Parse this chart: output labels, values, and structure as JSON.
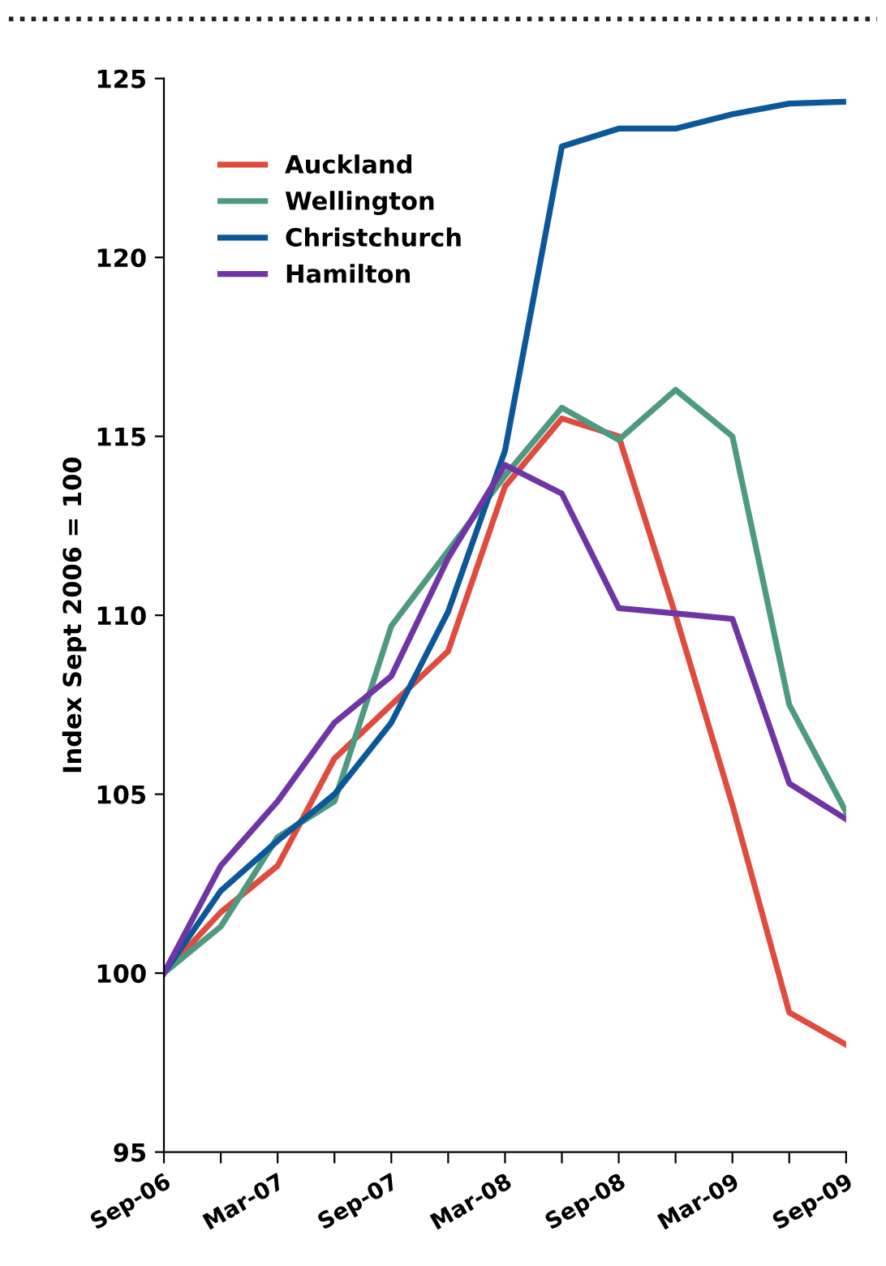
{
  "chart_data": {
    "type": "line",
    "ylabel": "Index Sept 2006 = 100",
    "categories": [
      "Sep-06",
      null,
      "Mar-07",
      null,
      "Sep-07",
      null,
      "Mar-08",
      null,
      "Sep-08",
      null,
      "Mar-09",
      null,
      "Sep-09"
    ],
    "series": [
      {
        "name": "Auckland",
        "color": "#e04b3f",
        "values": [
          100,
          101.7,
          103,
          106,
          107.5,
          109,
          113.6,
          115.5,
          115,
          110,
          104.7,
          98.9,
          98
        ]
      },
      {
        "name": "Wellington",
        "color": "#4e9a80",
        "values": [
          100,
          101.3,
          103.8,
          104.8,
          109.7,
          111.8,
          113.9,
          115.8,
          114.9,
          116.3,
          115,
          107.5,
          104.5
        ]
      },
      {
        "name": "Christchurch",
        "color": "#0b5799",
        "values": [
          100,
          102.3,
          103.7,
          105,
          107,
          110.1,
          114.6,
          123.1,
          123.6,
          123.6,
          124,
          124.3,
          124.35
        ]
      },
      {
        "name": "Hamilton",
        "color": "#6f35a5",
        "values": [
          100,
          103,
          104.8,
          107,
          108.3,
          111.6,
          114.2,
          113.4,
          110.2,
          110.05,
          109.9,
          105.3,
          104.3
        ]
      }
    ],
    "ylim": [
      95,
      125
    ],
    "yticks": [
      95,
      100,
      105,
      110,
      115,
      120,
      125
    ],
    "grid": false,
    "legend": "top left",
    "marker": "none",
    "line_style": "solid"
  }
}
